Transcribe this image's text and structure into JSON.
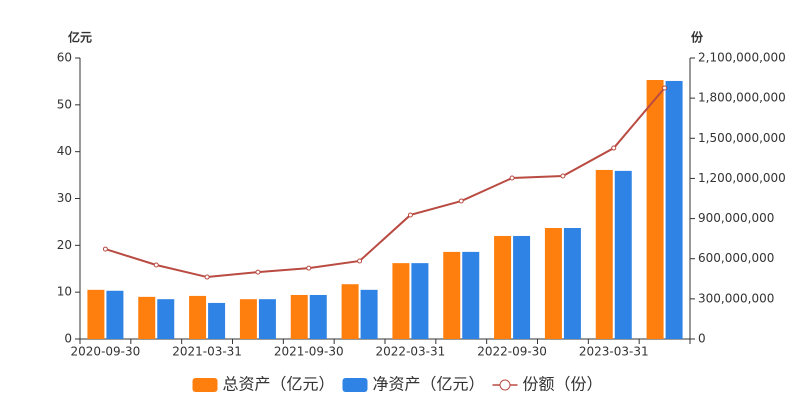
{
  "chart_data": {
    "type": "bar-line",
    "y_axis_label": "亿元",
    "y2_axis_label": "份",
    "categories": [
      "2020-09-30",
      null,
      "2021-03-31",
      null,
      "2021-09-30",
      null,
      "2022-03-31",
      null,
      "2022-09-30",
      null,
      "2023-03-31",
      null
    ],
    "series": [
      {
        "name": "总资产（亿元）",
        "color": "#ff7f0e",
        "type": "bar",
        "values": [
          10.5,
          9.0,
          9.2,
          8.5,
          9.4,
          11.7,
          16.2,
          18.6,
          22.0,
          23.7,
          36.1,
          55.3
        ]
      },
      {
        "name": "净资产（亿元）",
        "color": "#2f83e4",
        "type": "bar",
        "values": [
          10.3,
          8.5,
          7.7,
          8.5,
          9.4,
          10.5,
          16.2,
          18.6,
          22.0,
          23.7,
          35.9,
          55.1
        ]
      },
      {
        "name": "份额（份）",
        "color": "#b94b42",
        "type": "line",
        "axis": "y2",
        "values": [
          672000000,
          553000000,
          463000000,
          500000000,
          530000000,
          583000000,
          927000000,
          1031000000,
          1203000000,
          1218000000,
          1427000000,
          1876000000
        ]
      }
    ],
    "ylim": [
      0,
      60
    ],
    "yticks": [
      0,
      10,
      20,
      30,
      40,
      50,
      60
    ],
    "y2lim": [
      0,
      2100000000
    ],
    "y2ticks": [
      0,
      {
        "value": 300000000,
        "label": "300,000,000"
      },
      {
        "value": 600000000,
        "label": "600,000,000"
      },
      {
        "value": 900000000,
        "label": "900,000,000"
      },
      {
        "value": 1200000000,
        "label": "1,200,000,000"
      },
      {
        "value": 1500000000,
        "label": "1,500,000,000"
      },
      {
        "value": 1800000000,
        "label": "1,800,000,000"
      },
      {
        "value": 2100000000,
        "label": "2,100,000,000"
      }
    ],
    "legend": "bottom"
  }
}
